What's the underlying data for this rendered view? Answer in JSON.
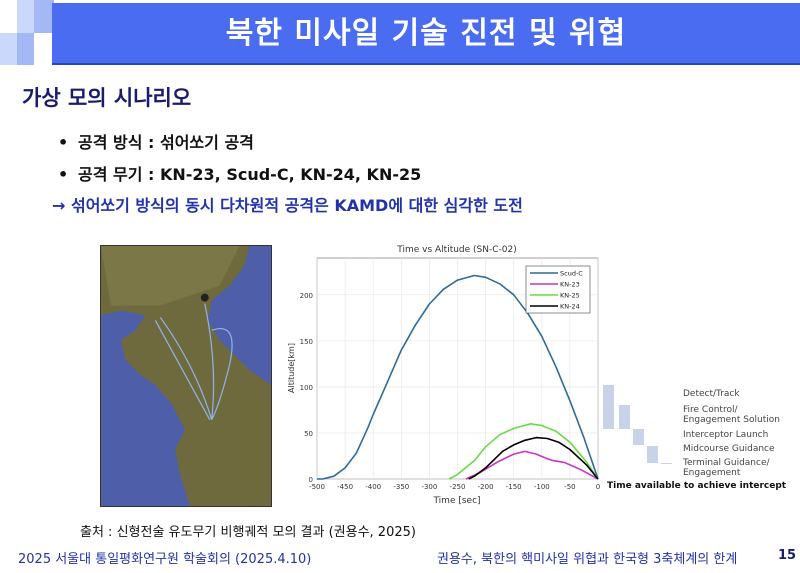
{
  "header": {
    "title": "북한 미사일 기술 진전 및 위협"
  },
  "section": {
    "subtitle": "가상 모의 시나리오"
  },
  "bullets": [
    {
      "marker": "•",
      "text": "공격 방식 : 섞어쏘기 공격"
    },
    {
      "marker": "•",
      "text": "공격 무기 : KN-23, Scud-C, KN-24, KN-25"
    }
  ],
  "conclusion": "→ 섞어쏘기 방식의 동시 다차원적 공격은 KAMD에 대한 심각한 도전",
  "map": {
    "icon": "korean-peninsula-satellite-map"
  },
  "chart_data": {
    "type": "line",
    "title": "Time vs Altitude (SN-C-02)",
    "xlabel": "Time [sec]",
    "ylabel": "Altitude[km]",
    "xlim": [
      -500,
      0
    ],
    "ylim": [
      0,
      240
    ],
    "xticks": [
      -500,
      -450,
      -400,
      -350,
      -300,
      -250,
      -200,
      -150,
      -100,
      -50,
      0
    ],
    "yticks": [
      0,
      50,
      100,
      150,
      200
    ],
    "grid": true,
    "legend": "top-right",
    "series": [
      {
        "name": "Scud-C",
        "color": "#2f6a99",
        "points": [
          [
            -500,
            0
          ],
          [
            -490,
            0
          ],
          [
            -470,
            3
          ],
          [
            -450,
            12
          ],
          [
            -430,
            28
          ],
          [
            -410,
            55
          ],
          [
            -400,
            70
          ],
          [
            -375,
            105
          ],
          [
            -350,
            140
          ],
          [
            -325,
            167
          ],
          [
            -300,
            190
          ],
          [
            -275,
            206
          ],
          [
            -250,
            216
          ],
          [
            -220,
            221
          ],
          [
            -200,
            219
          ],
          [
            -175,
            212
          ],
          [
            -150,
            200
          ],
          [
            -125,
            180
          ],
          [
            -100,
            155
          ],
          [
            -75,
            122
          ],
          [
            -50,
            85
          ],
          [
            -25,
            45
          ],
          [
            0,
            0
          ]
        ]
      },
      {
        "name": "KN-23",
        "color": "#cc33cc",
        "points": [
          [
            -235,
            0
          ],
          [
            -210,
            7
          ],
          [
            -180,
            18
          ],
          [
            -150,
            27
          ],
          [
            -130,
            30
          ],
          [
            -110,
            27
          ],
          [
            -90,
            22
          ],
          [
            -80,
            20
          ],
          [
            -60,
            18
          ],
          [
            -30,
            10
          ],
          [
            0,
            0
          ]
        ]
      },
      {
        "name": "KN-25",
        "color": "#66dd44",
        "points": [
          [
            -265,
            0
          ],
          [
            -250,
            5
          ],
          [
            -220,
            20
          ],
          [
            -200,
            35
          ],
          [
            -175,
            48
          ],
          [
            -150,
            55
          ],
          [
            -120,
            60
          ],
          [
            -100,
            58
          ],
          [
            -75,
            52
          ],
          [
            -50,
            40
          ],
          [
            -20,
            18
          ],
          [
            0,
            0
          ]
        ]
      },
      {
        "name": "KN-24",
        "color": "#000000",
        "points": [
          [
            -230,
            0
          ],
          [
            -220,
            3
          ],
          [
            -200,
            12
          ],
          [
            -170,
            30
          ],
          [
            -150,
            37
          ],
          [
            -130,
            42
          ],
          [
            -110,
            45
          ],
          [
            -90,
            44
          ],
          [
            -70,
            40
          ],
          [
            -50,
            32
          ],
          [
            -20,
            15
          ],
          [
            0,
            0
          ]
        ]
      }
    ]
  },
  "intercept": {
    "stages": [
      "Detect/Track",
      "Fire Control/\nEngagement Solution",
      "Interceptor Launch",
      "Midcourse Guidance",
      "Terminal Guidance/\nEngagement"
    ],
    "caption": "Time available to achieve intercept",
    "zero_label": "0"
  },
  "source": "출처 : 신형전술 유도무기 비행궤적 모의 결과 (권용수, 2025)",
  "footer": {
    "left": "2025 서울대 통일평화연구원 학술회의 (2025.4.10)",
    "right": "권용수, 북한의 핵미사일 위협과 한국형 3축체계의 한계",
    "page": "15"
  },
  "colors": {
    "header": "#4a6cf0",
    "subtitle": "#1b1b6e",
    "accent": "#2233aa"
  }
}
